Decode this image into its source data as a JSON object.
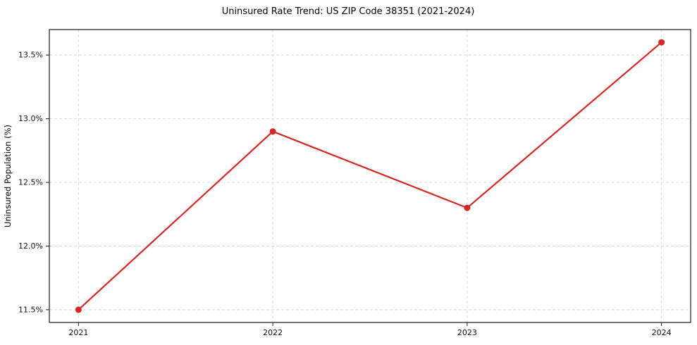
{
  "chart_data": {
    "type": "line",
    "title": "Uninsured Rate Trend: US ZIP Code 38351 (2021-2024)",
    "ylabel": "Uninsured Population (%)",
    "xlabel": "",
    "x": [
      2021,
      2022,
      2023,
      2024
    ],
    "values": [
      11.5,
      12.9,
      12.3,
      13.6
    ],
    "xtick_labels": [
      "2021",
      "2022",
      "2023",
      "2024"
    ],
    "yticks": [
      11.5,
      12.0,
      12.5,
      13.0,
      13.5
    ],
    "ytick_labels": [
      "11.5%",
      "12.0%",
      "12.5%",
      "13.0%",
      "13.5%"
    ],
    "xlim": [
      2020.85,
      2024.15
    ],
    "ylim": [
      11.4,
      13.7
    ],
    "grid": true,
    "grid_style": "dashed",
    "grid_color": "#d9d9d9",
    "line_color": "#d62728",
    "marker": "circle",
    "marker_color": "#d62728",
    "spine_color": "#1a1a1a",
    "background_color": "#ffffff",
    "legend": "none"
  }
}
